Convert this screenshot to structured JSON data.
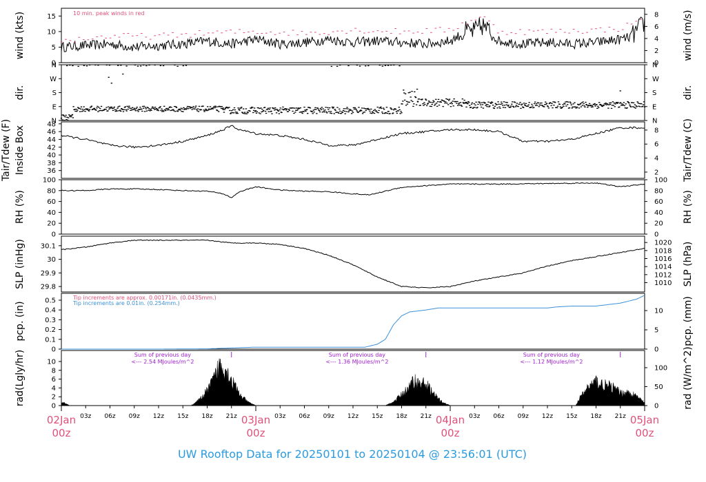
{
  "footer_title": "UW Rooftop Data for 20250101  to  20250104 @ 23:56:01  (UTC)",
  "colors": {
    "red": "#e0507a",
    "blue": "#3a8fd8",
    "purple": "#a020d0",
    "black": "#000000",
    "footer": "#2a9be0"
  },
  "x_axis": {
    "range_hours": [
      0,
      72
    ],
    "minor_ticks": [
      {
        "h": 3,
        "label": "03z"
      },
      {
        "h": 6,
        "label": "06z"
      },
      {
        "h": 9,
        "label": "09z"
      },
      {
        "h": 12,
        "label": "12z"
      },
      {
        "h": 15,
        "label": "15z"
      },
      {
        "h": 18,
        "label": "18z"
      },
      {
        "h": 21,
        "label": "21z"
      },
      {
        "h": 27,
        "label": "03z"
      },
      {
        "h": 30,
        "label": "06z"
      },
      {
        "h": 33,
        "label": "09z"
      },
      {
        "h": 36,
        "label": "12z"
      },
      {
        "h": 39,
        "label": "15z"
      },
      {
        "h": 42,
        "label": "18z"
      },
      {
        "h": 45,
        "label": "21z"
      },
      {
        "h": 51,
        "label": "03z"
      },
      {
        "h": 54,
        "label": "06z"
      },
      {
        "h": 57,
        "label": "09z"
      },
      {
        "h": 60,
        "label": "12z"
      },
      {
        "h": 63,
        "label": "15z"
      },
      {
        "h": 66,
        "label": "18z"
      },
      {
        "h": 69,
        "label": "21z"
      }
    ],
    "day_ticks": [
      {
        "h": 0,
        "date": "02Jan",
        "hour": "00z"
      },
      {
        "h": 24,
        "date": "03Jan",
        "hour": "00z"
      },
      {
        "h": 48,
        "date": "04Jan",
        "hour": "00z"
      },
      {
        "h": 72,
        "date": "05Jan",
        "hour": "00z"
      }
    ]
  },
  "chart_data": [
    {
      "type": "line",
      "left_label": "wind (kts)",
      "right_label": "wind (m/s)",
      "ylim": [
        0,
        17.5
      ],
      "left_ticks": [
        0,
        5,
        10,
        15
      ],
      "right_ticks": [
        {
          "v": 0,
          "at": 0
        },
        {
          "v": 2,
          "at": 3.89
        },
        {
          "v": 4,
          "at": 7.78
        },
        {
          "v": 6,
          "at": 11.66
        },
        {
          "v": 8,
          "at": 15.55
        }
      ],
      "annotation": "10 min. peak winds in red",
      "series": [
        {
          "role": "wind",
          "hours": [
            0,
            3,
            6,
            9,
            12,
            15,
            18,
            21,
            24,
            27,
            30,
            33,
            36,
            39,
            42,
            45,
            48,
            50,
            51,
            52,
            54,
            57,
            60,
            63,
            66,
            69,
            70,
            71,
            72
          ],
          "values": [
            5,
            5.5,
            6,
            5,
            5.5,
            6,
            7,
            6,
            7.5,
            6,
            6.5,
            7.5,
            6.5,
            7,
            6.5,
            6,
            7,
            10,
            10,
            12,
            7,
            6,
            6.5,
            6,
            6.5,
            7.5,
            8,
            10,
            13
          ]
        },
        {
          "role": "peak",
          "hours": [
            0,
            6,
            12,
            18,
            24,
            30,
            36,
            42,
            48,
            50,
            51,
            52,
            54,
            60,
            66,
            69,
            71,
            72
          ],
          "values": [
            7,
            8.5,
            8.5,
            9.5,
            10,
            9.5,
            10.5,
            10,
            10.5,
            13,
            14,
            15,
            10,
            10,
            10.5,
            11,
            13,
            16
          ]
        }
      ]
    },
    {
      "type": "scatter",
      "left_label": "dir.",
      "right_label": "dir.",
      "ylim": [
        0,
        360
      ],
      "left_ticks": [
        "N",
        "E",
        "S",
        "W",
        "N"
      ],
      "right_ticks": [
        "N",
        "E",
        "S",
        "W",
        "N"
      ],
      "tick_values": [
        0,
        90,
        180,
        270,
        360
      ],
      "segments": [
        {
          "h0": 0,
          "h1": 1.5,
          "center": 20,
          "spread": 20
        },
        {
          "h0": 0,
          "h1": 16,
          "center": 355,
          "spread": 6,
          "sparse": true
        },
        {
          "h0": 1.5,
          "h1": 20,
          "center": 75,
          "spread": 18
        },
        {
          "h0": 5.5,
          "h1": 8,
          "center": 250,
          "spread": 55,
          "sparse": true
        },
        {
          "h0": 20,
          "h1": 42,
          "center": 65,
          "spread": 22
        },
        {
          "h0": 33,
          "h1": 42,
          "center": 355,
          "spread": 6,
          "sparse": true
        },
        {
          "h0": 42,
          "h1": 44,
          "center": 150,
          "spread": 60
        },
        {
          "h0": 44,
          "h1": 50,
          "center": 115,
          "spread": 25
        },
        {
          "h0": 50,
          "h1": 72,
          "center": 100,
          "spread": 22
        },
        {
          "h0": 69,
          "h1": 70,
          "center": 200,
          "spread": 30,
          "sparse": true
        }
      ]
    },
    {
      "type": "line",
      "left_label_lines": [
        "Tair/Tdew (F)",
        "Inside Box"
      ],
      "right_label": "Tair/Tdew (C)",
      "ylim": [
        34,
        48.5
      ],
      "left_ticks": [
        36,
        38,
        40,
        42,
        44,
        46,
        48
      ],
      "right_ticks": [
        {
          "v": 2,
          "at": 35.6
        },
        {
          "v": 4,
          "at": 39.2
        },
        {
          "v": 6,
          "at": 42.8
        },
        {
          "v": 8,
          "at": 46.4
        }
      ],
      "series": [
        {
          "role": "temp",
          "hours": [
            0,
            3,
            6,
            9,
            12,
            15,
            18,
            20,
            21,
            22,
            24,
            27,
            30,
            33,
            36,
            38,
            42,
            45,
            48,
            51,
            54,
            57,
            60,
            63,
            66,
            69,
            72
          ],
          "values": [
            45,
            44,
            42.5,
            42,
            42.5,
            43.5,
            45,
            46.5,
            47.5,
            46.5,
            45.5,
            45,
            44,
            42.5,
            42.5,
            43.5,
            45.5,
            46,
            46.5,
            46.5,
            46,
            43.5,
            43.5,
            44,
            45.5,
            47,
            47
          ]
        }
      ]
    },
    {
      "type": "line",
      "left_label": "RH (%)",
      "right_label": "RH (%)",
      "ylim": [
        0,
        100
      ],
      "left_ticks": [
        0,
        20,
        40,
        60,
        80,
        100
      ],
      "right_ticks": [
        0,
        20,
        40,
        60,
        80,
        100
      ],
      "series": [
        {
          "role": "rh",
          "hours": [
            0,
            3,
            6,
            9,
            12,
            15,
            18,
            20,
            21,
            22,
            24,
            27,
            30,
            33,
            36,
            38,
            42,
            48,
            54,
            60,
            66,
            69,
            72
          ],
          "values": [
            80,
            80,
            83,
            83,
            82,
            80,
            79,
            74,
            67,
            78,
            87,
            81,
            79,
            78,
            74,
            72,
            86,
            92,
            92,
            93,
            94,
            87,
            92
          ]
        }
      ]
    },
    {
      "type": "line",
      "left_label": "SLP (inHg)",
      "right_label": "SLP (hPa)",
      "ylim": [
        29.76,
        30.17
      ],
      "left_ticks": [
        29.8,
        29.9,
        30.0,
        30.1
      ],
      "right_ticks": [
        {
          "v": 1010,
          "at": 29.8283
        },
        {
          "v": 1012,
          "at": 29.8873
        },
        {
          "v": 1014,
          "at": 29.9464
        },
        {
          "v": 1016,
          "at": 30.0055
        },
        {
          "v": 1018,
          "at": 30.0645
        },
        {
          "v": 1020,
          "at": 30.1236
        }
      ],
      "series": [
        {
          "role": "slp",
          "hours": [
            0,
            3,
            6,
            9,
            12,
            15,
            18,
            21,
            24,
            27,
            30,
            33,
            36,
            39,
            42,
            45,
            48,
            51,
            54,
            57,
            60,
            63,
            66,
            69,
            72
          ],
          "values": [
            30.07,
            30.09,
            30.12,
            30.14,
            30.14,
            30.14,
            30.14,
            30.12,
            30.12,
            30.11,
            30.08,
            30.03,
            29.96,
            29.87,
            29.8,
            29.79,
            29.8,
            29.84,
            29.87,
            29.9,
            29.95,
            29.99,
            30.02,
            30.05,
            30.08
          ]
        }
      ]
    },
    {
      "type": "line",
      "left_label": "pcp. (in)",
      "right_label": "pcp. (mm)",
      "ylim": [
        0,
        0.57
      ],
      "left_ticks": [
        0,
        0.1,
        0.2,
        0.3,
        0.4,
        0.5
      ],
      "right_ticks": [
        {
          "v": 0,
          "at": 0
        },
        {
          "v": 5,
          "at": 0.1969
        },
        {
          "v": 10,
          "at": 0.3937
        }
      ],
      "annotations": [
        "Tip increments are approx. 0.00171in. (0.0435mm.)",
        "Tip increments are 0.01in. (0.254mm.)"
      ],
      "series": [
        {
          "role": "pcp",
          "hours": [
            0,
            12,
            18,
            24,
            30,
            36,
            37.5,
            39,
            40,
            41,
            42,
            43,
            45,
            46.5,
            48,
            54,
            60,
            61,
            63,
            66,
            69,
            71,
            72
          ],
          "values": [
            0,
            0,
            0.003,
            0.02,
            0.02,
            0.02,
            0.02,
            0.05,
            0.1,
            0.25,
            0.34,
            0.38,
            0.4,
            0.42,
            0.42,
            0.42,
            0.42,
            0.43,
            0.44,
            0.44,
            0.47,
            0.51,
            0.55
          ]
        }
      ]
    },
    {
      "type": "area",
      "left_label": "rad(Lgly/hr)",
      "right_label": "rad (W/m^2)",
      "ylim": [
        0,
        12.5
      ],
      "left_ticks": [
        0,
        2,
        4,
        6,
        8,
        10
      ],
      "right_ticks": [
        {
          "v": 0,
          "at": 0
        },
        {
          "v": 50,
          "at": 4.3
        },
        {
          "v": 100,
          "at": 8.6
        }
      ],
      "daily_notes": [
        {
          "h": 12.5,
          "line1": "Sum of previous day",
          "line2": "<--- 2.54 MJoules/m^2"
        },
        {
          "h": 36.5,
          "line1": "Sum of previous day",
          "line2": "<--- 1.36 MJoules/m^2"
        },
        {
          "h": 60.5,
          "line1": "Sum of previous day",
          "line2": "<--- 1.12 MJoules/m^2"
        }
      ],
      "markers": [
        21,
        45,
        69
      ],
      "series": [
        {
          "role": "rad",
          "hours": [
            0,
            0.5,
            1,
            16,
            17,
            18,
            19,
            19.5,
            20,
            20.5,
            21,
            22,
            23,
            24,
            40,
            41,
            42,
            43,
            43.5,
            44,
            45,
            46,
            47,
            48,
            63.5,
            64,
            65,
            66,
            67,
            68,
            69,
            70,
            71,
            72
          ],
          "values": [
            1,
            0.6,
            0,
            0,
            1.5,
            4,
            8,
            11,
            11,
            9,
            7,
            3,
            1,
            0,
            0,
            1,
            3,
            5,
            7,
            6,
            6,
            3,
            1,
            0,
            0,
            2,
            5,
            6.5,
            5.5,
            5,
            3.5,
            3.5,
            2.5,
            0.8
          ]
        }
      ]
    }
  ]
}
